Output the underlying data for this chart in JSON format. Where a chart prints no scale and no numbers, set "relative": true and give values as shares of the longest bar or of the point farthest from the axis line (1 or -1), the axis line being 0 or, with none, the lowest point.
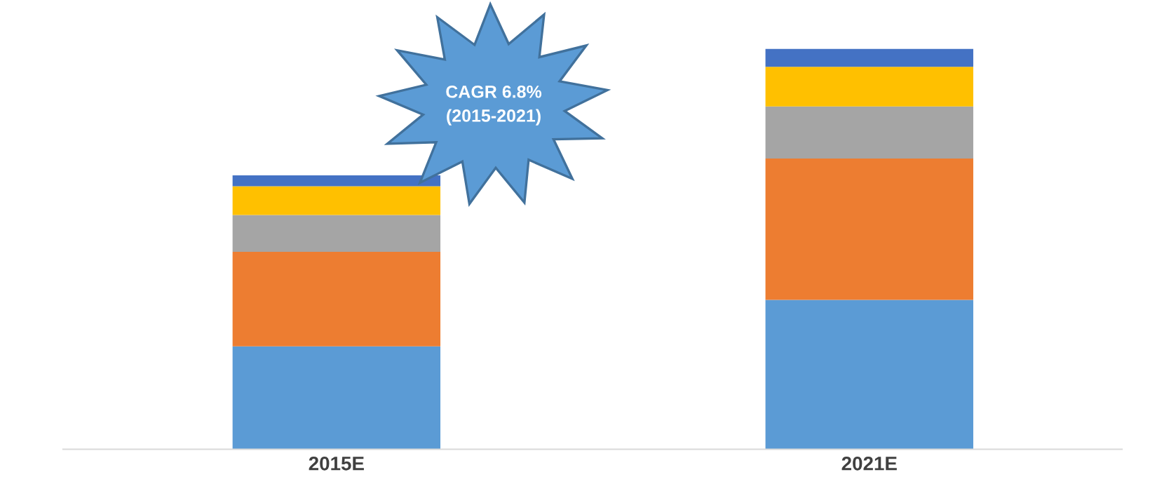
{
  "chart_data": {
    "type": "bar",
    "stacked": true,
    "relative": true,
    "categories": [
      "2015E",
      "2021E"
    ],
    "series": [
      {
        "color": "#5b9bd5",
        "values": [
          0.257,
          0.373
        ]
      },
      {
        "color": "#ed7d31",
        "values": [
          0.236,
          0.353
        ]
      },
      {
        "color": "#a5a5a5",
        "values": [
          0.092,
          0.13
        ]
      },
      {
        "color": "#ffc000",
        "values": [
          0.072,
          0.099
        ]
      },
      {
        "color": "#4472c4",
        "values": [
          0.027,
          0.045
        ]
      }
    ],
    "annotations": [
      "CAGR 6.8%\n(2015-2021)"
    ],
    "grid": false
  }
}
